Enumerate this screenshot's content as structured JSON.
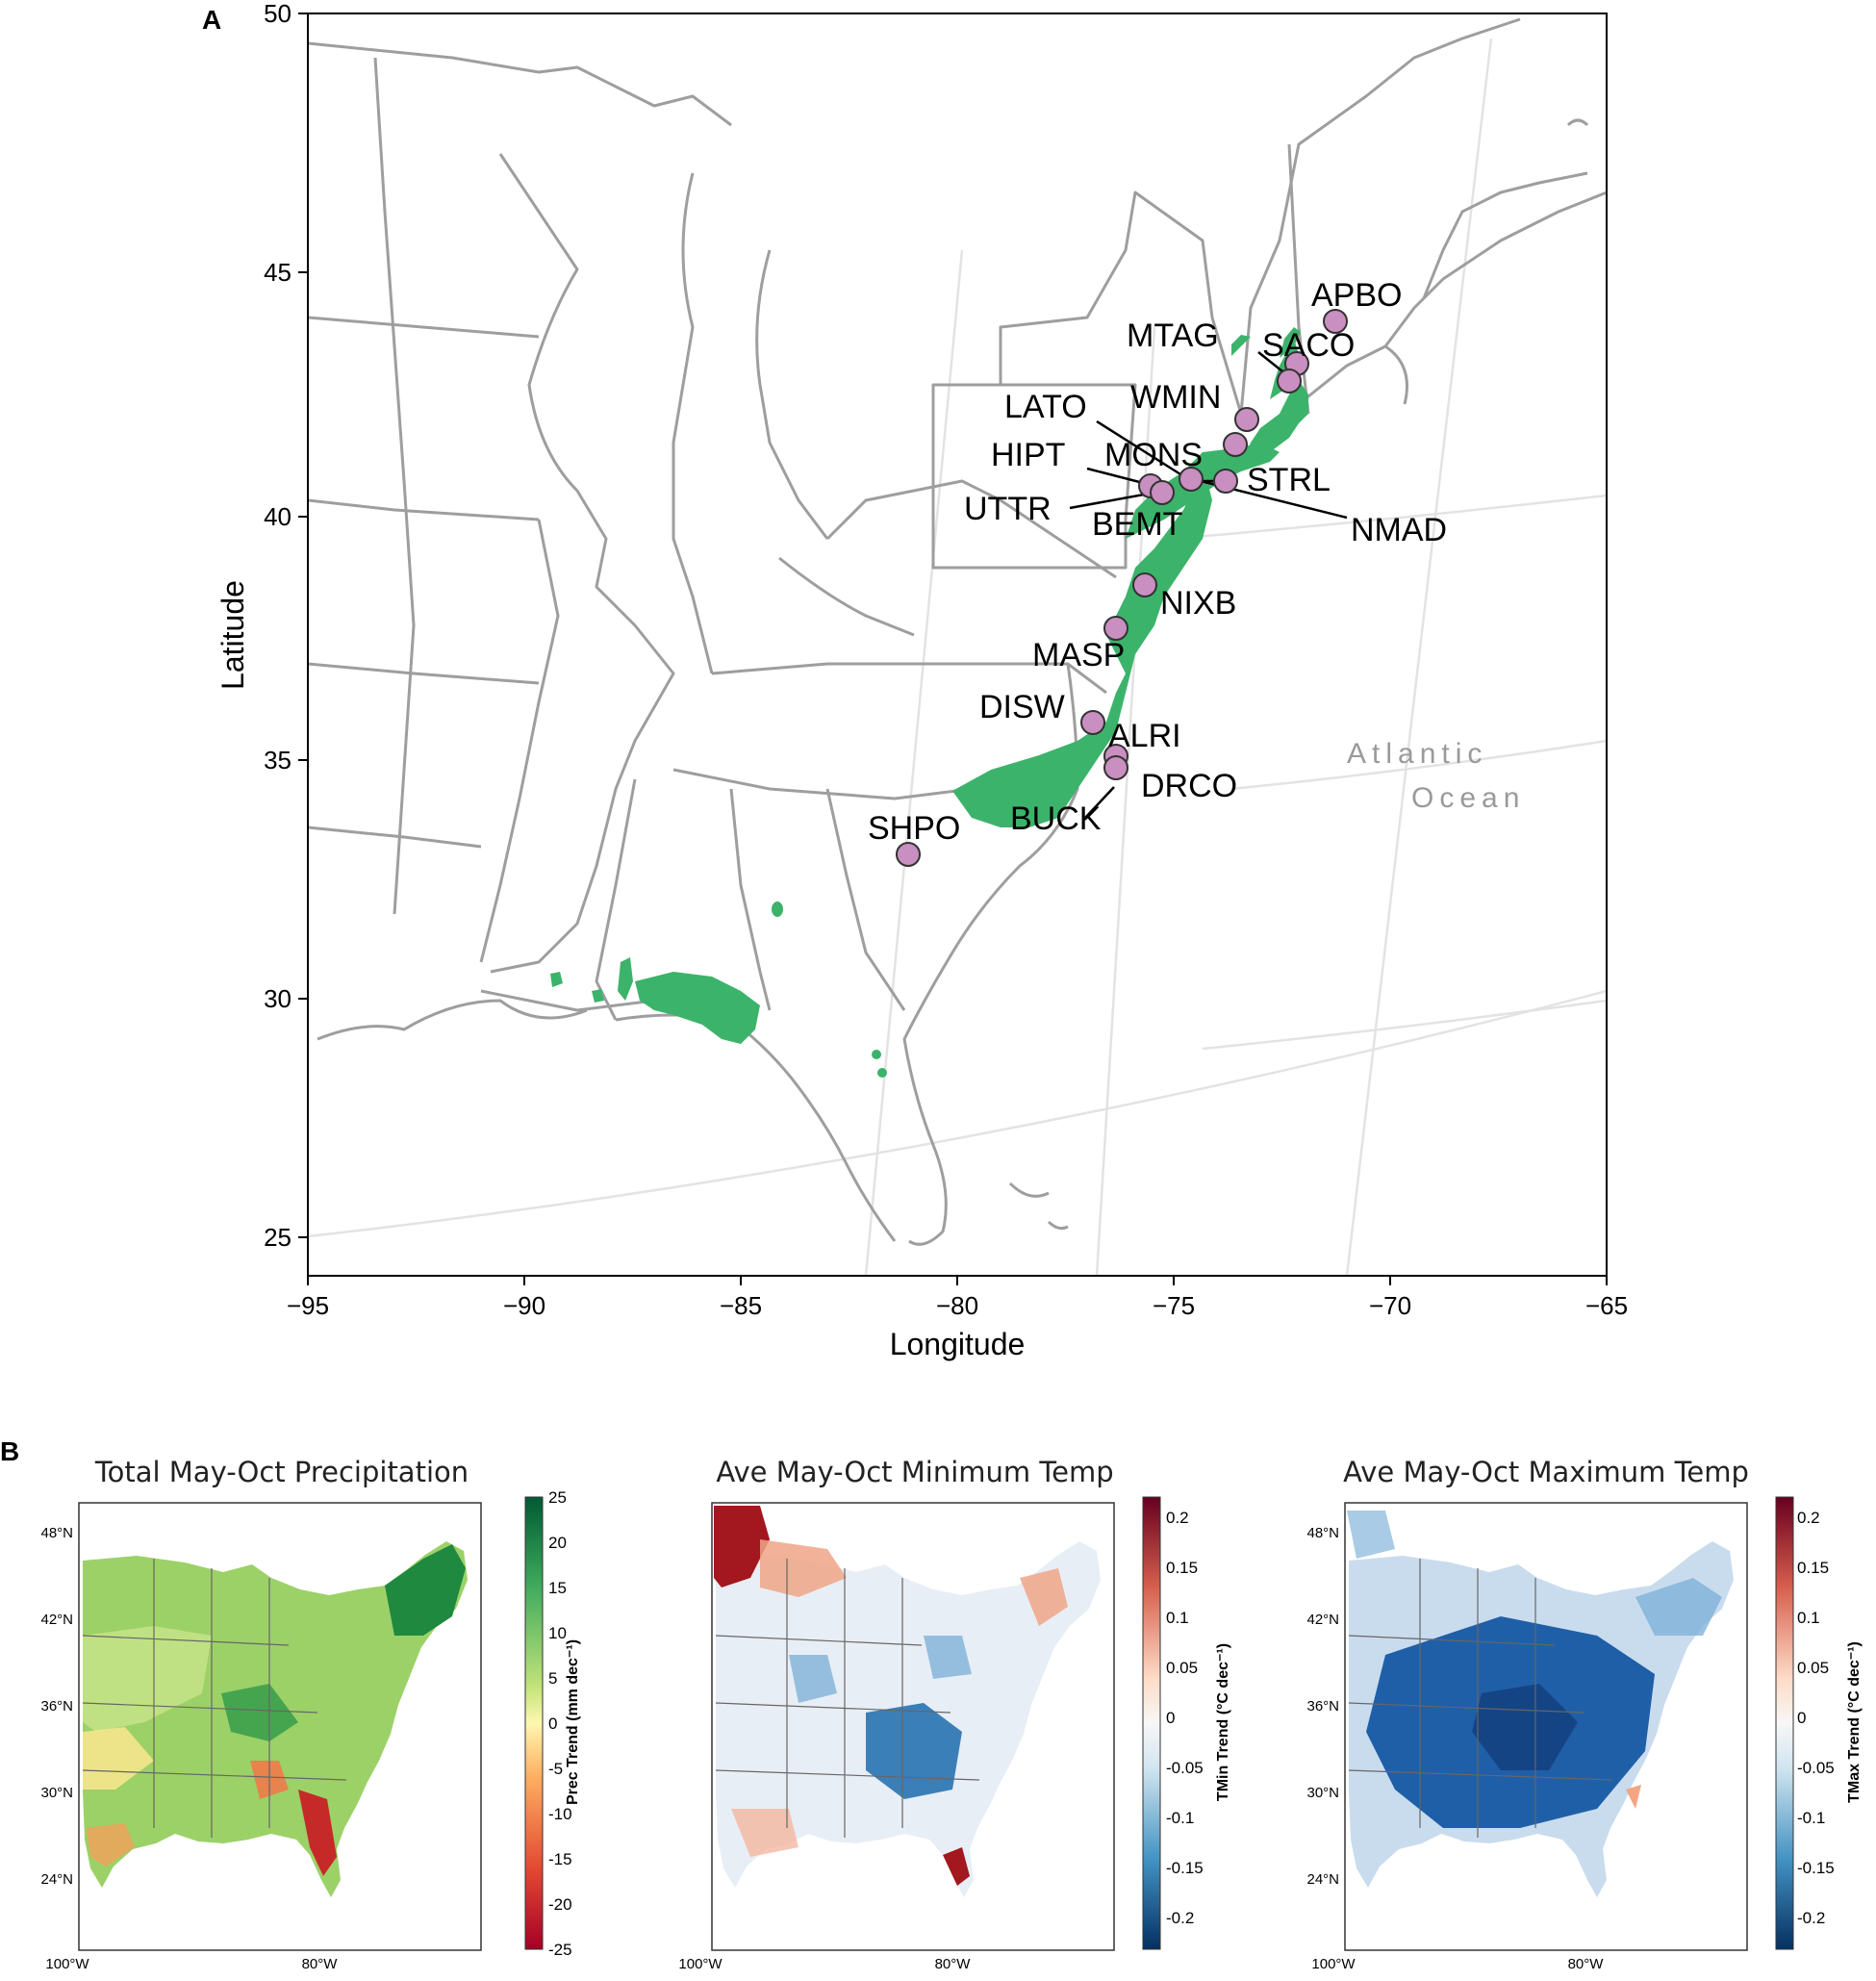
{
  "panel_a": {
    "label": "A",
    "xlabel": "Longitude",
    "ylabel": "Latitude",
    "x_ticks": [
      "−95",
      "−90",
      "−85",
      "−80",
      "−75",
      "−70",
      "−65"
    ],
    "y_ticks": [
      "50",
      "45",
      "40",
      "35",
      "30",
      "25"
    ],
    "ocean_label_1": "Atlantic",
    "ocean_label_2": "Ocean",
    "site_fill_color": "#c98fc0",
    "range_fill_color": "#3cb36a",
    "sites": [
      {
        "code": "APBO"
      },
      {
        "code": "SACO"
      },
      {
        "code": "MTAG"
      },
      {
        "code": "WMIN"
      },
      {
        "code": "LATO"
      },
      {
        "code": "MONS"
      },
      {
        "code": "HIPT"
      },
      {
        "code": "STRL"
      },
      {
        "code": "UTTR"
      },
      {
        "code": "BEMT"
      },
      {
        "code": "NMAD"
      },
      {
        "code": "NIXB"
      },
      {
        "code": "MASP"
      },
      {
        "code": "DISW"
      },
      {
        "code": "ALRI"
      },
      {
        "code": "DRCO"
      },
      {
        "code": "BUCK"
      },
      {
        "code": "SHPO"
      }
    ]
  },
  "panel_b": {
    "label": "B",
    "maps": [
      {
        "title": "Total May-Oct Precipitation",
        "colorbar_label": "Prec Trend (mm dec⁻¹)",
        "colorbar_ticks": [
          "25",
          "20",
          "15",
          "10",
          "5",
          "0",
          "-5",
          "-10",
          "-15",
          "-20",
          "-25"
        ],
        "colorbar_colors": [
          "#005a32",
          "#41ab5d",
          "#a6d96a",
          "#fee08b",
          "#f46d43",
          "#a50026"
        ],
        "lat_ticks": [
          "48°N",
          "42°N",
          "36°N",
          "30°N",
          "24°N"
        ],
        "lon_ticks": [
          "100°W",
          "80°W"
        ]
      },
      {
        "title": "Ave May-Oct Minimum Temp",
        "colorbar_label": "TMin Trend (°C dec⁻¹)",
        "colorbar_ticks": [
          "0.2",
          "0.15",
          "0.1",
          "0.05",
          "0",
          "-0.05",
          "-0.1",
          "-0.15",
          "-0.2"
        ],
        "colorbar_colors": [
          "#67001f",
          "#d6604d",
          "#fddbc7",
          "#f7f7f7",
          "#d1e5f0",
          "#4393c3",
          "#053061"
        ],
        "lat_ticks": [],
        "lon_ticks": [
          "100°W",
          "80°W"
        ]
      },
      {
        "title": "Ave May-Oct Maximum Temp",
        "colorbar_label": "TMax Trend (°C dec⁻¹)",
        "colorbar_ticks": [
          "0.2",
          "0.15",
          "0.1",
          "0.05",
          "0",
          "-0.05",
          "-0.1",
          "-0.15",
          "-0.2"
        ],
        "colorbar_colors": [
          "#67001f",
          "#d6604d",
          "#fddbc7",
          "#f7f7f7",
          "#d1e5f0",
          "#4393c3",
          "#053061"
        ],
        "lat_ticks": [
          "48°N",
          "42°N",
          "36°N",
          "30°N",
          "24°N"
        ],
        "lon_ticks": [
          "100°W",
          "80°W"
        ]
      }
    ]
  }
}
